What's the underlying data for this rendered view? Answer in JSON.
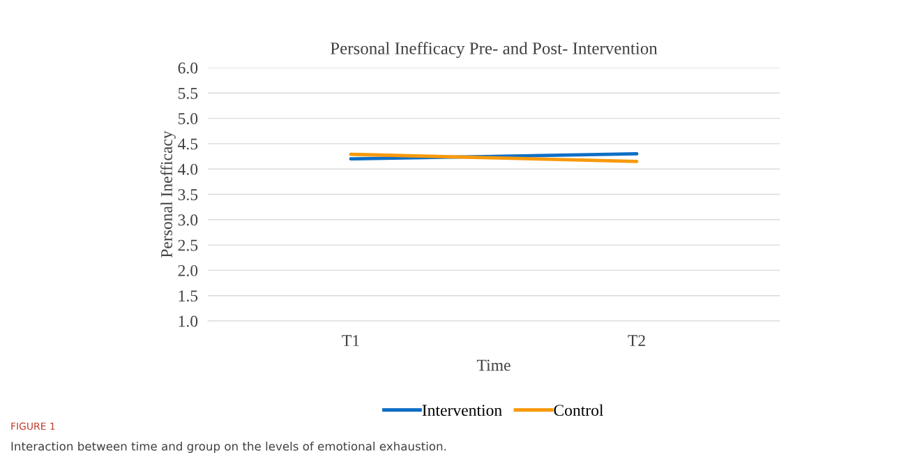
{
  "chart_data": {
    "type": "line",
    "title": "Personal Inefficacy Pre- and Post- Intervention",
    "xlabel": "Time",
    "ylabel": "Personal Inefficacy",
    "categories": [
      "T1",
      "T2"
    ],
    "series": [
      {
        "name": "Intervention",
        "color": "#0f6fc6",
        "values": [
          4.2,
          4.3
        ]
      },
      {
        "name": "Control",
        "color": "#f79a0c",
        "values": [
          4.29,
          4.15
        ]
      }
    ],
    "ylim": [
      1.0,
      6.0
    ],
    "yticks": [
      {
        "value": 1.0,
        "label": "1.0"
      },
      {
        "value": 1.5,
        "label": "1.5"
      },
      {
        "value": 2.0,
        "label": "2.0"
      },
      {
        "value": 2.5,
        "label": "2.5"
      },
      {
        "value": 3.0,
        "label": "3.0"
      },
      {
        "value": 3.5,
        "label": "3.5"
      },
      {
        "value": 4.0,
        "label": "4.0"
      },
      {
        "value": 4.5,
        "label": "4.5"
      },
      {
        "value": 5.0,
        "label": "5.0"
      },
      {
        "value": 5.5,
        "label": "5.5"
      },
      {
        "value": 6.0,
        "label": "6.0"
      }
    ],
    "grid": "y",
    "legend": "bottom",
    "marker": "none",
    "line_style": "solid",
    "annotations": [
      "FIGURE 1",
      "Interaction between time and group on the levels of emotional exhaustion."
    ]
  }
}
